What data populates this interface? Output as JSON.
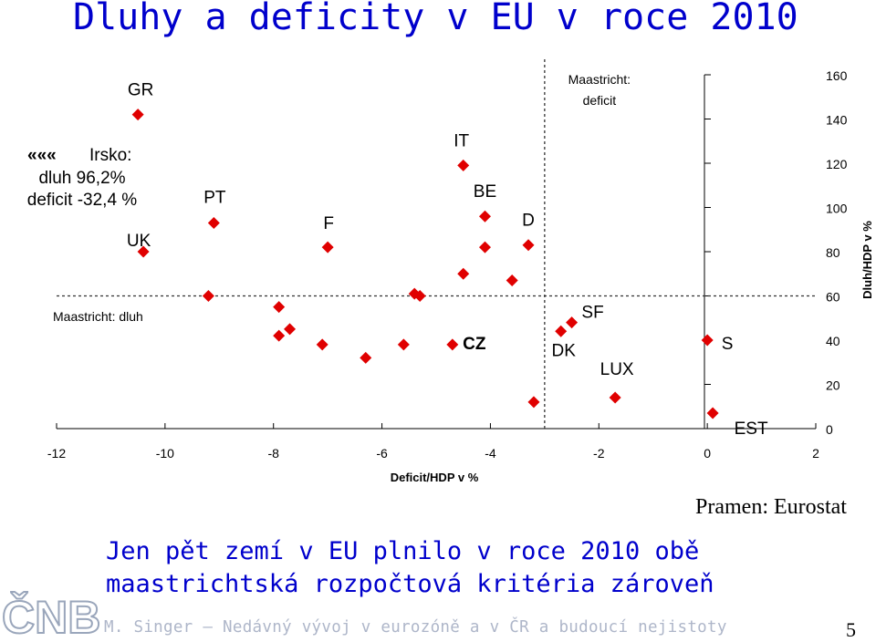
{
  "slide": {
    "title": "Dluhy a deficity v EU v roce 2010",
    "source": "Pramen: Eurostat",
    "conclusion_line1": "Jen pět zemí v EU plnilo v roce 2010 obě",
    "conclusion_line2": "maastrichtská rozpočtová kritéria zároveň",
    "footer": "M. Singer – Nedávný vývoj v eurozóně a v ČR a budoucí nejistoty",
    "page_number": "5",
    "logo_text": "ČNB"
  },
  "chart_data": {
    "type": "scatter",
    "xlabel": "Deficit/HDP v %",
    "ylabel": "Dluh/HDP v %",
    "xlim": [
      -12,
      2
    ],
    "ylim": [
      0,
      160
    ],
    "x_ticks": [
      "-12",
      "-10",
      "-8",
      "-6",
      "-4",
      "-2",
      "0",
      "2"
    ],
    "y_ticks": [
      "0",
      "20",
      "40",
      "60",
      "80",
      "100",
      "120",
      "140",
      "160"
    ],
    "grid": false,
    "marker_color": "#e00000",
    "reference_lines": {
      "debt_label": "Maastricht: dluh",
      "debt_value": 60,
      "deficit_label_line1": "Maastricht:",
      "deficit_label_line2": "deficit",
      "deficit_value": -3
    },
    "annotation_ireland": {
      "arrows": "«««",
      "line1": "Irsko:",
      "line2": "dluh 96,2%",
      "line3": "deficit -32,4 %"
    },
    "points": [
      {
        "x": -10.5,
        "y": 142.0,
        "label": "GR"
      },
      {
        "x": -10.4,
        "y": 80.0,
        "label": "UK"
      },
      {
        "x": -9.1,
        "y": 93.0,
        "label": "PT"
      },
      {
        "x": -9.2,
        "y": 60.0,
        "label": ""
      },
      {
        "x": -7.0,
        "y": 82.0,
        "label": "F"
      },
      {
        "x": -4.5,
        "y": 119.0,
        "label": "IT"
      },
      {
        "x": -4.1,
        "y": 96.0,
        "label": "BE"
      },
      {
        "x": -4.1,
        "y": 82.0,
        "label": ""
      },
      {
        "x": -4.5,
        "y": 70.0,
        "label": ""
      },
      {
        "x": -3.3,
        "y": 83.0,
        "label": "D"
      },
      {
        "x": -3.6,
        "y": 67.0,
        "label": ""
      },
      {
        "x": -5.4,
        "y": 61.0,
        "label": ""
      },
      {
        "x": -5.3,
        "y": 60.0,
        "label": ""
      },
      {
        "x": -7.9,
        "y": 55.0,
        "label": ""
      },
      {
        "x": -7.9,
        "y": 42.0,
        "label": ""
      },
      {
        "x": -7.7,
        "y": 45.0,
        "label": ""
      },
      {
        "x": -7.1,
        "y": 38.0,
        "label": ""
      },
      {
        "x": -6.3,
        "y": 32.0,
        "label": ""
      },
      {
        "x": -5.6,
        "y": 38.0,
        "label": ""
      },
      {
        "x": -4.7,
        "y": 38.0,
        "label": "CZ"
      },
      {
        "x": -3.2,
        "y": 12.0,
        "label": ""
      },
      {
        "x": -2.7,
        "y": 44.0,
        "label": "DK"
      },
      {
        "x": -2.5,
        "y": 48.0,
        "label": "SF"
      },
      {
        "x": -1.7,
        "y": 14.0,
        "label": "LUX"
      },
      {
        "x": 0.0,
        "y": 40.0,
        "label": "S"
      },
      {
        "x": 0.1,
        "y": 7.0,
        "label": "EST"
      }
    ]
  }
}
